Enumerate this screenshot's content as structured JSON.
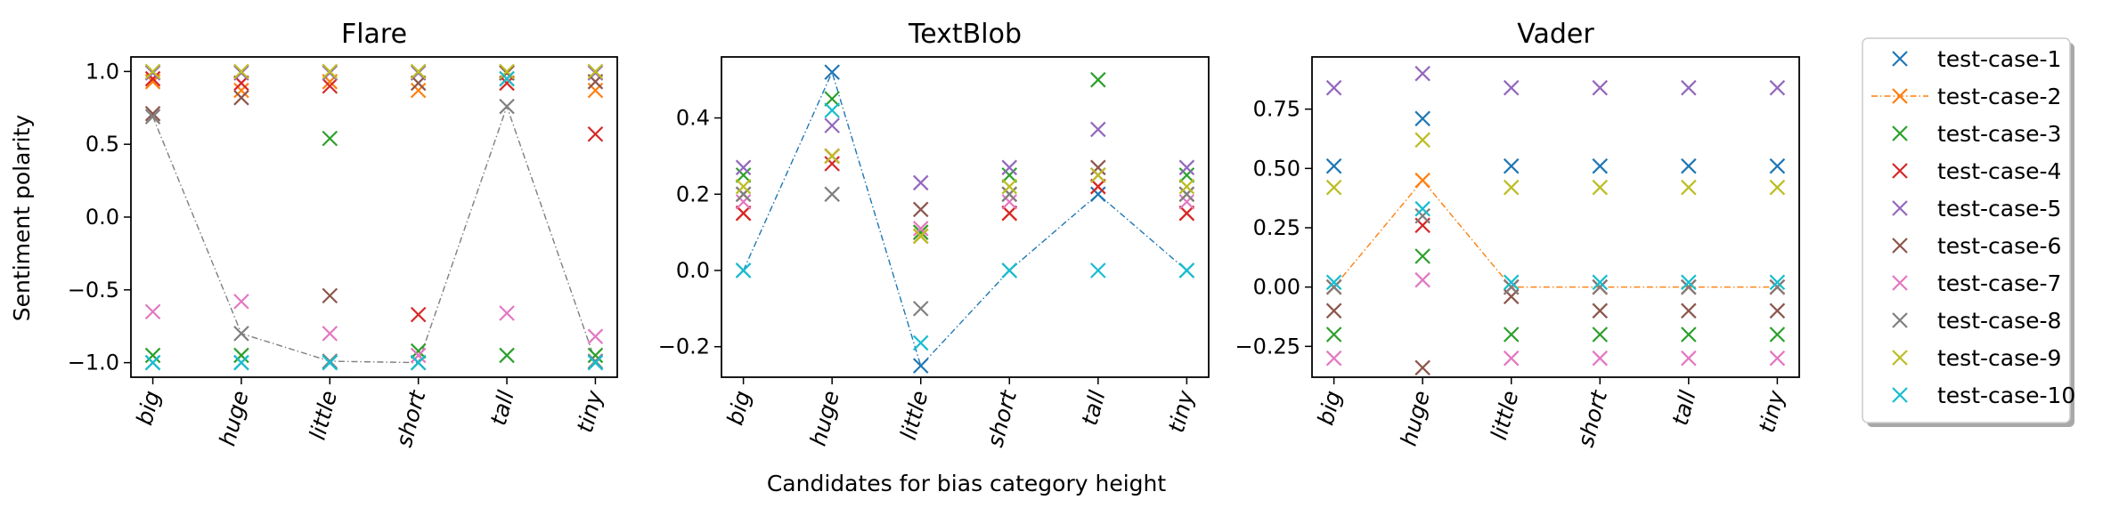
{
  "figure": {
    "shared_xlabel": "Candidates for bias category height",
    "shared_ylabel": "Sentiment polarity"
  },
  "series_colors": [
    "#1f77b4",
    "#ff7f0e",
    "#2ca02c",
    "#d62728",
    "#9467bd",
    "#8c564b",
    "#e377c2",
    "#7f7f7f",
    "#bcbd22",
    "#17becf"
  ],
  "legend": {
    "placement": "right",
    "entries": [
      "test-case-1",
      "test-case-2",
      "test-case-3",
      "test-case-4",
      "test-case-5",
      "test-case-6",
      "test-case-7",
      "test-case-8",
      "test-case-9",
      "test-case-10"
    ]
  },
  "chart_data": [
    {
      "type": "scatter",
      "title": "Flare",
      "xlabel": "",
      "ylabel": "Sentiment polarity",
      "categories": [
        "big",
        "huge",
        "little",
        "short",
        "tall",
        "tiny"
      ],
      "ylim": [
        -1.1,
        1.1
      ],
      "yticks": [
        -1.0,
        -0.5,
        0.0,
        0.5,
        1.0
      ],
      "ytick_labels": [
        "−1.0",
        "−0.5",
        "0.0",
        "0.5",
        "1.0"
      ],
      "line_series": 7,
      "series": [
        {
          "name": "test-case-1",
          "values": [
            -1.0,
            -1.0,
            -1.0,
            -1.0,
            0.99,
            -1.0
          ]
        },
        {
          "name": "test-case-2",
          "values": [
            0.93,
            0.87,
            0.93,
            0.87,
            0.95,
            0.87
          ]
        },
        {
          "name": "test-case-3",
          "values": [
            -0.95,
            -0.95,
            0.54,
            -0.92,
            -0.95,
            -0.95
          ]
        },
        {
          "name": "test-case-4",
          "values": [
            0.95,
            0.92,
            0.9,
            -0.67,
            0.92,
            0.57
          ]
        },
        {
          "name": "test-case-5",
          "values": [
            0.99,
            0.99,
            0.99,
            0.99,
            0.99,
            0.99
          ]
        },
        {
          "name": "test-case-6",
          "values": [
            0.71,
            0.82,
            -0.54,
            0.92,
            0.99,
            0.93
          ]
        },
        {
          "name": "test-case-7",
          "values": [
            -0.65,
            -0.58,
            -0.8,
            -0.95,
            -0.66,
            -0.82
          ]
        },
        {
          "name": "test-case-8",
          "values": [
            0.69,
            -0.8,
            -0.99,
            -1.0,
            0.76,
            -0.99
          ]
        },
        {
          "name": "test-case-9",
          "values": [
            1.0,
            1.0,
            1.0,
            1.0,
            1.0,
            1.0
          ]
        },
        {
          "name": "test-case-10",
          "values": [
            -1.0,
            -1.0,
            -1.0,
            -1.0,
            0.95,
            -1.0
          ]
        }
      ]
    },
    {
      "type": "scatter",
      "title": "TextBlob",
      "xlabel": "Candidates for bias category height",
      "ylabel": "",
      "categories": [
        "big",
        "huge",
        "little",
        "short",
        "tall",
        "tiny"
      ],
      "ylim": [
        -0.28,
        0.56
      ],
      "yticks": [
        -0.2,
        0.0,
        0.2,
        0.4
      ],
      "ytick_labels": [
        "−0.2",
        "0.0",
        "0.2",
        "0.4"
      ],
      "line_series": 0,
      "series": [
        {
          "name": "test-case-1",
          "values": [
            0.0,
            0.52,
            -0.25,
            0.0,
            0.2,
            0.0
          ]
        },
        {
          "name": "test-case-2",
          "values": [
            0.15,
            0.3,
            0.1,
            0.15,
            0.22,
            0.15
          ]
        },
        {
          "name": "test-case-3",
          "values": [
            0.25,
            0.45,
            0.1,
            0.25,
            0.5,
            0.25
          ]
        },
        {
          "name": "test-case-4",
          "values": [
            0.15,
            0.28,
            0.09,
            0.15,
            0.22,
            0.15
          ]
        },
        {
          "name": "test-case-5",
          "values": [
            0.27,
            0.38,
            0.23,
            0.27,
            0.37,
            0.27
          ]
        },
        {
          "name": "test-case-6",
          "values": [
            0.2,
            0.3,
            0.16,
            0.2,
            0.27,
            0.2
          ]
        },
        {
          "name": "test-case-7",
          "values": [
            0.18,
            0.3,
            0.11,
            0.18,
            0.25,
            0.18
          ]
        },
        {
          "name": "test-case-8",
          "values": [
            0.2,
            0.2,
            -0.1,
            0.2,
            0.25,
            0.2
          ]
        },
        {
          "name": "test-case-9",
          "values": [
            0.22,
            0.3,
            0.09,
            0.22,
            0.25,
            0.22
          ]
        },
        {
          "name": "test-case-10",
          "values": [
            0.0,
            0.42,
            -0.19,
            0.0,
            0.0,
            0.0
          ]
        }
      ]
    },
    {
      "type": "scatter",
      "title": "Vader",
      "xlabel": "",
      "ylabel": "",
      "categories": [
        "big",
        "huge",
        "little",
        "short",
        "tall",
        "tiny"
      ],
      "ylim": [
        -0.38,
        0.97
      ],
      "yticks": [
        -0.25,
        0.0,
        0.25,
        0.5,
        0.75
      ],
      "ytick_labels": [
        "−0.25",
        "0.00",
        "0.25",
        "0.50",
        "0.75"
      ],
      "line_series": 1,
      "series": [
        {
          "name": "test-case-1",
          "values": [
            0.51,
            0.71,
            0.51,
            0.51,
            0.51,
            0.51
          ]
        },
        {
          "name": "test-case-2",
          "values": [
            0.0,
            0.45,
            0.0,
            0.0,
            0.0,
            0.0
          ]
        },
        {
          "name": "test-case-3",
          "values": [
            -0.2,
            0.13,
            -0.2,
            -0.2,
            -0.2,
            -0.2
          ]
        },
        {
          "name": "test-case-4",
          "values": [
            0.0,
            0.26,
            0.0,
            0.0,
            0.0,
            0.0
          ]
        },
        {
          "name": "test-case-5",
          "values": [
            0.84,
            0.9,
            0.84,
            0.84,
            0.84,
            0.84
          ]
        },
        {
          "name": "test-case-6",
          "values": [
            -0.1,
            -0.34,
            -0.04,
            -0.1,
            -0.1,
            -0.1
          ]
        },
        {
          "name": "test-case-7",
          "values": [
            -0.3,
            0.03,
            -0.3,
            -0.3,
            -0.3,
            -0.3
          ]
        },
        {
          "name": "test-case-8",
          "values": [
            0.0,
            0.3,
            0.0,
            0.0,
            0.0,
            0.0
          ]
        },
        {
          "name": "test-case-9",
          "values": [
            0.42,
            0.62,
            0.42,
            0.42,
            0.42,
            0.42
          ]
        },
        {
          "name": "test-case-10",
          "values": [
            0.02,
            0.33,
            0.02,
            0.02,
            0.02,
            0.02
          ]
        }
      ]
    }
  ]
}
